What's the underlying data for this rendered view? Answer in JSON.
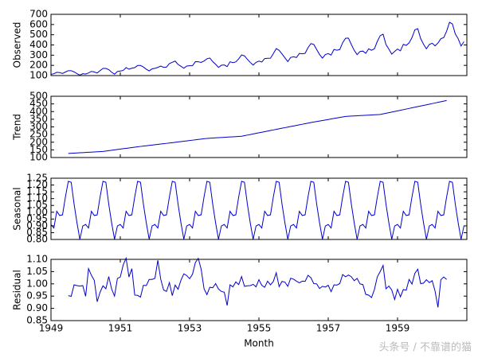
{
  "chart_data": {
    "type": "line",
    "xlabel": "Month",
    "watermark": "头条号 / 不靠谱的猫",
    "x": [
      "1949-01",
      "1949-02",
      "1949-03",
      "1949-04",
      "1949-05",
      "1949-06",
      "1949-07",
      "1949-08",
      "1949-09",
      "1949-10",
      "1949-11",
      "1949-12",
      "1950-01",
      "1950-02",
      "1950-03",
      "1950-04",
      "1950-05",
      "1950-06",
      "1950-07",
      "1950-08",
      "1950-09",
      "1950-10",
      "1950-11",
      "1950-12",
      "1951-01",
      "1951-02",
      "1951-03",
      "1951-04",
      "1951-05",
      "1951-06",
      "1951-07",
      "1951-08",
      "1951-09",
      "1951-10",
      "1951-11",
      "1951-12",
      "1952-01",
      "1952-02",
      "1952-03",
      "1952-04",
      "1952-05",
      "1952-06",
      "1952-07",
      "1952-08",
      "1952-09",
      "1952-10",
      "1952-11",
      "1952-12",
      "1953-01",
      "1953-02",
      "1953-03",
      "1953-04",
      "1953-05",
      "1953-06",
      "1953-07",
      "1953-08",
      "1953-09",
      "1953-10",
      "1953-11",
      "1953-12",
      "1954-01",
      "1954-02",
      "1954-03",
      "1954-04",
      "1954-05",
      "1954-06",
      "1954-07",
      "1954-08",
      "1954-09",
      "1954-10",
      "1954-11",
      "1954-12",
      "1955-01",
      "1955-02",
      "1955-03",
      "1955-04",
      "1955-05",
      "1955-06",
      "1955-07",
      "1955-08",
      "1955-09",
      "1955-10",
      "1955-11",
      "1955-12",
      "1956-01",
      "1956-02",
      "1956-03",
      "1956-04",
      "1956-05",
      "1956-06",
      "1956-07",
      "1956-08",
      "1956-09",
      "1956-10",
      "1956-11",
      "1956-12",
      "1957-01",
      "1957-02",
      "1957-03",
      "1957-04",
      "1957-05",
      "1957-06",
      "1957-07",
      "1957-08",
      "1957-09",
      "1957-10",
      "1957-11",
      "1957-12",
      "1958-01",
      "1958-02",
      "1958-03",
      "1958-04",
      "1958-05",
      "1958-06",
      "1958-07",
      "1958-08",
      "1958-09",
      "1958-10",
      "1958-11",
      "1958-12",
      "1959-01",
      "1959-02",
      "1959-03",
      "1959-04",
      "1959-05",
      "1959-06",
      "1959-07",
      "1959-08",
      "1959-09",
      "1959-10",
      "1959-11",
      "1959-12",
      "1960-01",
      "1960-02",
      "1960-03",
      "1960-04",
      "1960-05",
      "1960-06",
      "1960-07",
      "1960-08",
      "1960-09",
      "1960-10",
      "1960-11",
      "1960-12"
    ],
    "xlim": [
      "1949-01",
      "1961-01"
    ],
    "xticks": [
      {
        "value": "1949-01",
        "label": "1949"
      },
      {
        "value": "1951-01",
        "label": "1951"
      },
      {
        "value": "1953-01",
        "label": "1953"
      },
      {
        "value": "1955-01",
        "label": "1955"
      },
      {
        "value": "1957-01",
        "label": "1957"
      },
      {
        "value": "1959-01",
        "label": "1959"
      }
    ],
    "panels": [
      {
        "ylabel": "Observed",
        "ylim": [
          100,
          700
        ],
        "yticks": [
          100,
          200,
          300,
          400,
          500,
          600,
          700
        ],
        "series": [
          {
            "color": "#0000cc",
            "values": [
              112,
              118,
              132,
              129,
              121,
              135,
              148,
              148,
              136,
              119,
              104,
              118,
              115,
              126,
              141,
              135,
              125,
              149,
              170,
              170,
              158,
              133,
              114,
              140,
              145,
              150,
              178,
              163,
              172,
              178,
              199,
              199,
              184,
              162,
              146,
              166,
              171,
              180,
              193,
              181,
              183,
              218,
              230,
              242,
              209,
              191,
              172,
              194,
              196,
              196,
              236,
              235,
              229,
              243,
              264,
              272,
              237,
              211,
              180,
              201,
              204,
              188,
              235,
              227,
              234,
              264,
              302,
              293,
              259,
              229,
              203,
              229,
              242,
              233,
              267,
              269,
              270,
              315,
              364,
              347,
              312,
              274,
              237,
              278,
              284,
              277,
              317,
              313,
              318,
              374,
              413,
              405,
              355,
              306,
              271,
              306,
              315,
              301,
              356,
              348,
              355,
              422,
              465,
              467,
              404,
              347,
              305,
              336,
              340,
              318,
              362,
              348,
              363,
              435,
              491,
              505,
              404,
              359,
              310,
              337,
              360,
              342,
              406,
              396,
              420,
              472,
              548,
              559,
              463,
              407,
              362,
              405,
              417,
              391,
              419,
              461,
              472,
              535,
              622,
              606,
              508,
              461,
              390,
              432
            ]
          }
        ]
      },
      {
        "ylabel": "Trend",
        "ylim": [
          100,
          500
        ],
        "yticks": [
          100,
          150,
          200,
          250,
          300,
          350,
          400,
          450,
          500
        ],
        "series": [
          {
            "color": "#0000cc",
            "values": [
              null,
              null,
              null,
              null,
              null,
              null,
              126.7,
              127.8,
              128.8,
              129.9,
              131.0,
              132.1,
              133.2,
              134.2,
              135.3,
              136.4,
              137.5,
              138.6,
              139.7,
              142.2,
              144.7,
              147.3,
              149.8,
              152.4,
              154.9,
              157.5,
              160.0,
              162.5,
              165.1,
              167.6,
              170.2,
              172.4,
              174.6,
              176.9,
              179.1,
              181.4,
              183.6,
              185.8,
              188.1,
              190.3,
              192.5,
              194.8,
              197.0,
              199.3,
              201.7,
              204.0,
              206.3,
              208.7,
              211.0,
              213.3,
              215.7,
              218.0,
              220.3,
              222.7,
              225.0,
              226.2,
              227.3,
              228.5,
              229.6,
              230.8,
              232.0,
              233.1,
              234.3,
              235.4,
              236.6,
              237.8,
              238.9,
              242.7,
              246.4,
              250.2,
              253.9,
              257.7,
              261.5,
              265.2,
              269.0,
              272.7,
              276.5,
              280.2,
              284.0,
              287.7,
              291.4,
              295.1,
              298.8,
              302.4,
              306.1,
              309.8,
              313.5,
              317.2,
              320.9,
              324.6,
              328.3,
              331.6,
              335.0,
              338.3,
              341.6,
              345.0,
              348.3,
              351.7,
              355.0,
              358.4,
              361.7,
              365.1,
              368.4,
              369.5,
              370.5,
              371.6,
              372.6,
              373.7,
              374.7,
              375.8,
              376.8,
              377.9,
              378.9,
              380.0,
              381.0,
              384.9,
              388.9,
              392.8,
              396.8,
              400.7,
              404.7,
              408.6,
              412.6,
              416.5,
              420.4,
              424.4,
              428.3,
              432.3,
              436.3,
              440.3,
              444.3,
              448.3,
              452.3,
              456.2,
              460.2,
              464.2,
              468.2,
              472.2,
              null,
              null,
              null,
              null,
              null,
              null
            ]
          }
        ]
      },
      {
        "ylabel": "Seasonal",
        "ylim": [
          0.8,
          1.25
        ],
        "yticks": [
          {
            "value": 0.8,
            "label": "0.80"
          },
          0.85,
          {
            "value": 0.9,
            "label": "0.90"
          },
          0.95,
          {
            "value": 1.0,
            "label": "1.00"
          },
          1.05,
          {
            "value": 1.1,
            "label": "1.10"
          },
          1.15,
          {
            "value": 1.2,
            "label": "1.20"
          },
          1.25
        ],
        "series": [
          {
            "color": "#0000cc",
            "values": [
              0.91,
              0.884,
              1.007,
              0.976,
              0.981,
              1.113,
              1.227,
              1.22,
              1.06,
              0.922,
              0.801,
              0.899,
              0.91,
              0.884,
              1.007,
              0.976,
              0.981,
              1.113,
              1.227,
              1.22,
              1.06,
              0.922,
              0.801,
              0.899,
              0.91,
              0.884,
              1.007,
              0.976,
              0.981,
              1.113,
              1.227,
              1.22,
              1.06,
              0.922,
              0.801,
              0.899,
              0.91,
              0.884,
              1.007,
              0.976,
              0.981,
              1.113,
              1.227,
              1.22,
              1.06,
              0.922,
              0.801,
              0.899,
              0.91,
              0.884,
              1.007,
              0.976,
              0.981,
              1.113,
              1.227,
              1.22,
              1.06,
              0.922,
              0.801,
              0.899,
              0.91,
              0.884,
              1.007,
              0.976,
              0.981,
              1.113,
              1.227,
              1.22,
              1.06,
              0.922,
              0.801,
              0.899,
              0.91,
              0.884,
              1.007,
              0.976,
              0.981,
              1.113,
              1.227,
              1.22,
              1.06,
              0.922,
              0.801,
              0.899,
              0.91,
              0.884,
              1.007,
              0.976,
              0.981,
              1.113,
              1.227,
              1.22,
              1.06,
              0.922,
              0.801,
              0.899,
              0.91,
              0.884,
              1.007,
              0.976,
              0.981,
              1.113,
              1.227,
              1.22,
              1.06,
              0.922,
              0.801,
              0.899,
              0.91,
              0.884,
              1.007,
              0.976,
              0.981,
              1.113,
              1.227,
              1.22,
              1.06,
              0.922,
              0.801,
              0.899,
              0.91,
              0.884,
              1.007,
              0.976,
              0.981,
              1.113,
              1.227,
              1.22,
              1.06,
              0.922,
              0.801,
              0.899,
              0.91,
              0.884,
              1.007,
              0.976,
              0.981,
              1.113,
              1.227,
              1.22,
              1.06,
              0.922,
              0.801,
              0.899
            ]
          }
        ]
      },
      {
        "ylabel": "Residual",
        "ylim": [
          0.85,
          1.1
        ],
        "yticks": [
          0.85,
          {
            "value": 0.9,
            "label": "0.90"
          },
          0.95,
          {
            "value": 1.0,
            "label": "1.00"
          },
          1.05,
          {
            "value": 1.1,
            "label": "1.10"
          }
        ],
        "series": [
          {
            "color": "#0000cc",
            "values": [
              null,
              null,
              null,
              null,
              null,
              null,
              0.952,
              0.949,
              0.996,
              0.993,
              0.991,
              0.993,
              0.949,
              1.062,
              1.035,
              1.014,
              0.927,
              0.966,
              0.992,
              0.98,
              1.03,
              0.979,
              0.95,
              1.022,
              1.028,
              1.077,
              1.105,
              1.028,
              1.062,
              0.954,
              0.953,
              0.946,
              0.994,
              0.993,
              1.018,
              1.018,
              1.023,
              1.096,
              1.019,
              0.975,
              0.969,
              1.005,
              0.952,
              0.995,
              0.978,
              1.015,
              1.041,
              1.034,
              1.021,
              1.039,
              1.087,
              1.104,
              1.06,
              0.98,
              0.956,
              0.986,
              0.984,
              1.001,
              0.979,
              0.969,
              0.966,
              0.912,
              0.996,
              0.988,
              1.008,
              0.997,
              1.03,
              0.99,
              0.992,
              0.993,
              0.998,
              0.988,
              1.017,
              0.994,
              0.986,
              1.011,
              0.996,
              1.01,
              1.045,
              0.989,
              1.01,
              1.007,
              0.99,
              1.023,
              1.019,
              1.011,
              1.004,
              1.011,
              1.01,
              1.035,
              1.025,
              1.001,
              1.0,
              0.981,
              0.99,
              0.987,
              0.994,
              0.968,
              0.996,
              0.995,
              1.001,
              1.038,
              1.029,
              1.036,
              1.029,
              1.013,
              1.022,
              1.0,
              0.997,
              0.957,
              0.954,
              0.944,
              0.977,
              1.029,
              1.05,
              1.075,
              0.98,
              0.991,
              0.975,
              0.936,
              0.978,
              0.947,
              0.977,
              0.974,
              1.018,
              0.999,
              1.043,
              1.06,
              1.001,
              1.003,
              1.017,
              1.005,
              1.013,
              0.97,
              0.904,
              1.017,
              1.028,
              1.018,
              null,
              null,
              null,
              null,
              null,
              null
            ]
          }
        ]
      }
    ]
  }
}
